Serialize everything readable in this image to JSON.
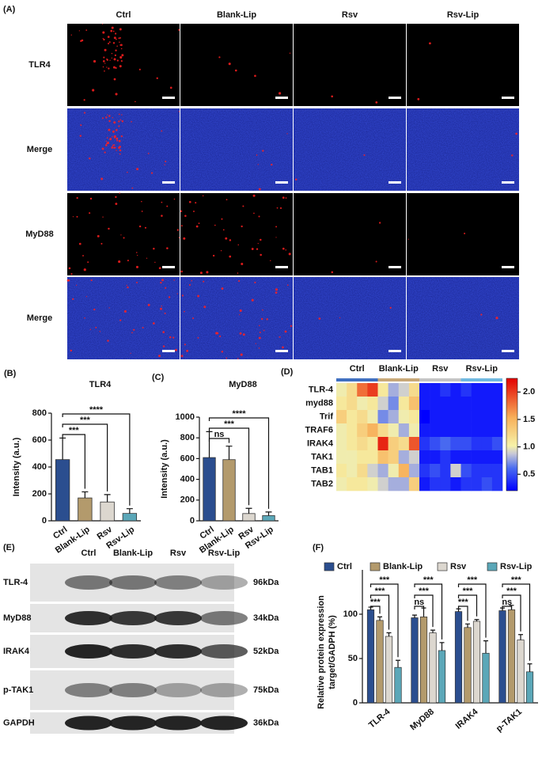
{
  "microscopy": {
    "panel_label": "(A)",
    "columns": [
      "Ctrl",
      "Blank-Lip",
      "Rsv",
      "Rsv-Lip"
    ],
    "rows": [
      "TLR4",
      "Merge",
      "MyD88",
      "Merge"
    ]
  },
  "western_blot": {
    "panel_label": "(E)",
    "columns": [
      "Ctrl",
      "Blank-Lip",
      "Rsv",
      "Rsv-Lip"
    ],
    "rows": [
      {
        "name": "TLR-4",
        "size": "96kDa"
      },
      {
        "name": "MyD88",
        "size": "34kDa"
      },
      {
        "name": "IRAK4",
        "size": "52kDa"
      },
      {
        "name": "p-TAK1",
        "size": "75kDa"
      },
      {
        "name": "GAPDH",
        "size": "36kDa"
      }
    ]
  },
  "chart_data": [
    {
      "type": "bar",
      "panel_label": "(B)",
      "title": "TLR4",
      "ylabel": "Intensity (a.u.)",
      "categories": [
        "Ctrl",
        "Blank-Lip",
        "Rsv",
        "Rsv-Lip"
      ],
      "values": [
        455,
        170,
        140,
        55
      ],
      "errors": [
        160,
        45,
        55,
        35
      ],
      "colors": [
        "#2b4e8f",
        "#b39a6c",
        "#dcd7cf",
        "#5ba7b8"
      ],
      "ylim": [
        0,
        800
      ],
      "yticks": [
        0,
        200,
        400,
        600,
        800
      ],
      "comparisons": [
        "***",
        "***",
        "****"
      ]
    },
    {
      "type": "bar",
      "panel_label": "(C)",
      "title": "MyD88",
      "ylabel": "Intensity (a.u.)",
      "categories": [
        "Ctrl",
        "Blank-Lip",
        "Rsv",
        "Rsv-Lip"
      ],
      "values": [
        610,
        590,
        70,
        50
      ],
      "errors": [
        250,
        130,
        50,
        35
      ],
      "colors": [
        "#2b4e8f",
        "#b39a6c",
        "#dcd7cf",
        "#5ba7b8"
      ],
      "ylim": [
        0,
        1000
      ],
      "yticks": [
        0,
        200,
        400,
        600,
        800,
        1000
      ],
      "comparisons": [
        "ns",
        "***",
        "****"
      ]
    },
    {
      "type": "heatmap",
      "panel_label": "(D)",
      "groups": [
        {
          "name": "Ctrl",
          "color": "#3f6fc0"
        },
        {
          "name": "Blank-Lip",
          "color": "#c8a878"
        },
        {
          "name": "Rsv",
          "color": "#c4c4c4"
        },
        {
          "name": "Rsv-Lip",
          "color": "#6fb8e0"
        }
      ],
      "rows": [
        "TLR-4",
        "myd88",
        "Trif",
        "TRAF6",
        "IRAK4",
        "TAK1",
        "TAB1",
        "TAB2"
      ],
      "values": [
        [
          1.0,
          1.2,
          1.8,
          2.0,
          1.1,
          0.8,
          0.9,
          1.2,
          0.3,
          0.3,
          0.4,
          0.3,
          0.4,
          0.3,
          0.3,
          0.3
        ],
        [
          1.1,
          1.2,
          1.0,
          1.1,
          0.9,
          0.7,
          1.1,
          1.4,
          0.3,
          0.3,
          0.3,
          0.3,
          0.3,
          0.3,
          0.3,
          0.3
        ],
        [
          1.3,
          1.1,
          1.2,
          1.0,
          0.7,
          0.8,
          1.0,
          1.1,
          0.2,
          0.3,
          0.3,
          0.3,
          0.3,
          0.3,
          0.3,
          0.3
        ],
        [
          1.0,
          1.1,
          1.3,
          1.5,
          1.2,
          1.0,
          0.8,
          1.0,
          0.3,
          0.3,
          0.3,
          0.3,
          0.3,
          0.3,
          0.3,
          0.3
        ],
        [
          1.0,
          1.1,
          1.2,
          1.1,
          2.1,
          1.3,
          1.2,
          1.9,
          0.4,
          0.5,
          0.6,
          0.5,
          0.5,
          0.4,
          0.4,
          0.5
        ],
        [
          1.0,
          1.0,
          1.1,
          1.1,
          1.4,
          1.3,
          0.8,
          0.9,
          0.3,
          0.3,
          0.4,
          0.3,
          0.3,
          0.3,
          0.3,
          0.3
        ],
        [
          1.1,
          1.0,
          1.2,
          0.9,
          0.8,
          1.0,
          1.5,
          0.8,
          0.4,
          0.5,
          0.4,
          0.9,
          0.5,
          0.4,
          0.4,
          0.4
        ],
        [
          1.0,
          1.1,
          1.1,
          1.0,
          0.9,
          0.8,
          0.8,
          1.3,
          0.3,
          0.4,
          0.4,
          0.3,
          0.4,
          0.4,
          0.5,
          0.4
        ]
      ],
      "clim": [
        0.2,
        2.25
      ],
      "cticks": [
        0.5,
        {
          "value": 1,
          "label": "1.0"
        },
        1.5,
        {
          "value": 2,
          "label": "2.0"
        }
      ]
    },
    {
      "type": "grouped_bar",
      "panel_label": "(F)",
      "ylabel": [
        "Relative protein expression",
        "target/GADPH (%)"
      ],
      "categories": [
        "TLR-4",
        "MyD88",
        "IRAK4",
        "p-TAK1"
      ],
      "series": [
        {
          "name": "Ctrl",
          "color": "#2b4e8f",
          "values": [
            105,
            96,
            103,
            104
          ],
          "errors": [
            3,
            3,
            3,
            3
          ]
        },
        {
          "name": "Blank-Lip",
          "color": "#b39a6c",
          "values": [
            93,
            97,
            85,
            105
          ],
          "errors": [
            4,
            10,
            4,
            5
          ]
        },
        {
          "name": "Rsv",
          "color": "#dcd7cf",
          "values": [
            75,
            79,
            92,
            71
          ],
          "errors": [
            4,
            3,
            2,
            6
          ]
        },
        {
          "name": "Rsv-Lip",
          "color": "#5ba7b8",
          "values": [
            40,
            59,
            56,
            35
          ],
          "errors": [
            8,
            9,
            14,
            9
          ]
        }
      ],
      "ylim": [
        0,
        150
      ],
      "yticks": [
        0,
        50,
        100
      ],
      "legend": "top",
      "comparisons": [
        [
          "***",
          "***",
          "***"
        ],
        [
          "ns",
          "***",
          "***"
        ],
        [
          "***",
          "***",
          "***"
        ],
        [
          "ns",
          "***",
          "***"
        ]
      ]
    }
  ]
}
